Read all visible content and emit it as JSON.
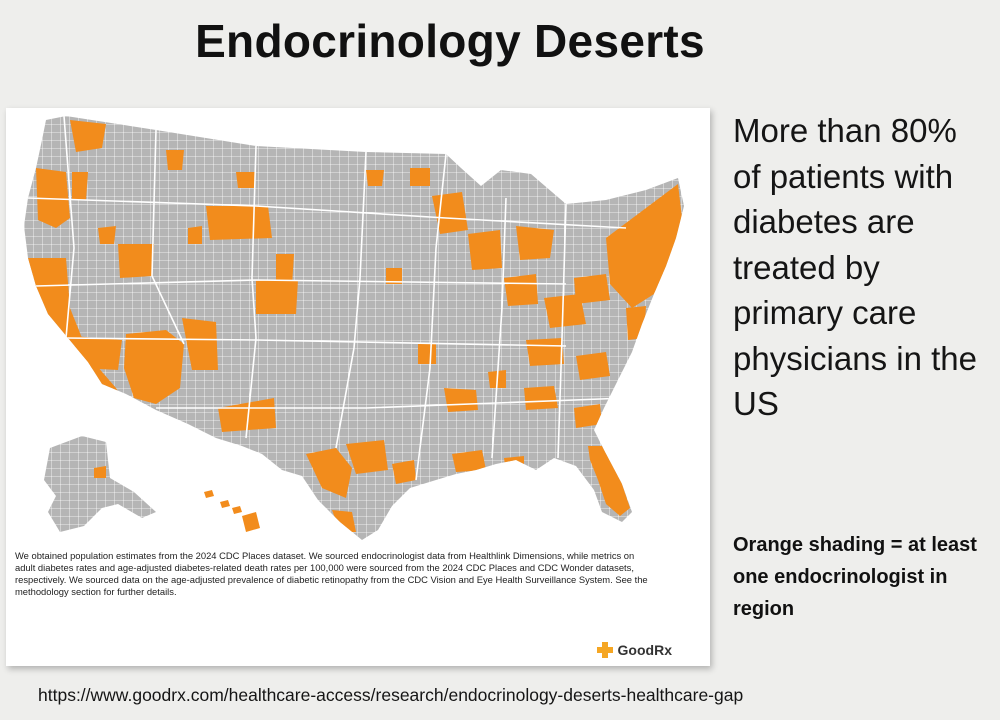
{
  "slide": {
    "title": "Endocrinology Deserts",
    "side_text": "More than 80% of patients with diabetes are treated by primary care physicians in the US",
    "legend_note": "Orange shading = at least one endocrinologist in region",
    "source_url": "https://www.goodrx.com/healthcare-access/research/endocrinology-deserts-healthcare-gap"
  },
  "map": {
    "methodology": "We obtained population estimates from the 2024 CDC Places dataset. We sourced endocrinologist data from Healthlink Dimensions, while metrics on adult diabetes rates and age-adjusted diabetes-related death rates per 100,000 were sourced from the 2024 CDC Places and CDC Wonder datasets, respectively. We sourced data on the age-adjusted prevalence of diabetic retinopathy from the CDC Vision and Eye Health Surveillance System. See the methodology section for further details.",
    "brand": "GoodRx",
    "colors": {
      "has_endocrinologist": "#f28c1c",
      "no_endocrinologist": "#b5b5b5",
      "county_border": "#ffffff",
      "brand": "#f5a623"
    }
  }
}
